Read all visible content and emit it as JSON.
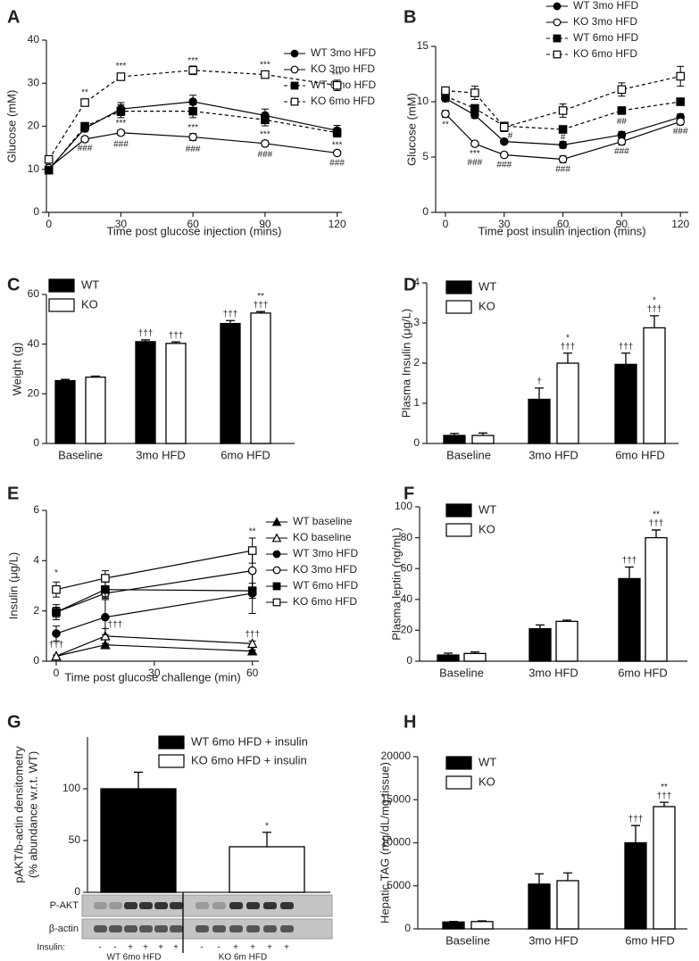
{
  "chart_data": [
    {
      "type": "line",
      "panel": "A",
      "xlabel": "Time post glucose injection (mins)",
      "ylabel": "Glucose (mM)",
      "x": [
        0,
        15,
        30,
        60,
        90,
        120
      ],
      "xlim": [
        -1,
        122
      ],
      "xticks": [
        0,
        30,
        60,
        90,
        120
      ],
      "ylim": [
        0,
        40
      ],
      "yticks": [
        0,
        10,
        20,
        30,
        40
      ],
      "series": [
        {
          "name": "WT 3mo HFD",
          "color": "#000000",
          "marker": "circle",
          "filled": true,
          "dashed": false,
          "values": [
            10,
            19.5,
            24,
            25.7,
            22.5,
            19
          ],
          "errors": [
            0.5,
            0.8,
            1.5,
            1.5,
            1.5,
            1.2
          ]
        },
        {
          "name": "KO 3mo HFD",
          "color": "#000000",
          "marker": "circle",
          "filled": false,
          "dashed": false,
          "values": [
            10.3,
            17,
            18.5,
            17.5,
            16,
            13.8
          ],
          "errors": [
            0.5,
            0.6,
            0.6,
            0.8,
            0.6,
            0.5
          ]
        },
        {
          "name": "WT 6mo HFD",
          "color": "#000000",
          "marker": "square",
          "filled": true,
          "dashed": true,
          "values": [
            9.8,
            20,
            23.5,
            23.5,
            21.5,
            18.5
          ],
          "errors": [
            0.6,
            0.8,
            1.5,
            1.5,
            1.4,
            1.0
          ]
        },
        {
          "name": "KO 6mo HFD",
          "color": "#000000",
          "marker": "square",
          "filled": false,
          "dashed": true,
          "values": [
            12.3,
            25.5,
            31.5,
            33,
            32,
            29.5
          ],
          "errors": [
            0.8,
            0.8,
            0.8,
            1,
            0.8,
            1.2
          ]
        }
      ],
      "annotations": [
        {
          "text": "**",
          "x": 15,
          "y": 27.8
        },
        {
          "text": "###",
          "x": 15,
          "y": 14.8
        },
        {
          "text": "***",
          "x": 30,
          "y": 33.9
        },
        {
          "text": "***",
          "x": 30,
          "y": 20.6
        },
        {
          "text": "###",
          "x": 30,
          "y": 15.8
        },
        {
          "text": "***",
          "x": 60,
          "y": 35.2
        },
        {
          "text": "***",
          "x": 60,
          "y": 19.6
        },
        {
          "text": "###",
          "x": 60,
          "y": 14.6
        },
        {
          "text": "***",
          "x": 90,
          "y": 34.2
        },
        {
          "text": "***",
          "x": 90,
          "y": 18.1
        },
        {
          "text": "###",
          "x": 90,
          "y": 13.4
        },
        {
          "text": "***",
          "x": 120,
          "y": 31.8
        },
        {
          "text": "***",
          "x": 120,
          "y": 15.6
        },
        {
          "text": "###",
          "x": 120,
          "y": 11.4
        }
      ]
    },
    {
      "type": "line",
      "panel": "B",
      "xlabel": "Time post insulin injection (mins)",
      "ylabel": "Glucose (mM)",
      "x": [
        0,
        15,
        30,
        60,
        90,
        120
      ],
      "xlim": [
        -5,
        124
      ],
      "xticks": [
        0,
        30,
        60,
        90,
        120
      ],
      "ylim": [
        0,
        15
      ],
      "yticks": [
        0,
        5,
        10,
        15
      ],
      "series": [
        {
          "name": "WT 3mo HFD",
          "color": "#000000",
          "marker": "circle",
          "filled": true,
          "dashed": false,
          "values": [
            10.3,
            8.8,
            6.4,
            6.1,
            7.0,
            8.6
          ],
          "errors": [
            0.3,
            0.3,
            0.2,
            0.3,
            0.3,
            0.3
          ]
        },
        {
          "name": "KO 3mo HFD",
          "color": "#000000",
          "marker": "circle",
          "filled": false,
          "dashed": false,
          "values": [
            8.9,
            6.2,
            5.2,
            4.8,
            6.4,
            8.2
          ],
          "errors": [
            0.3,
            0.2,
            0.2,
            0.3,
            0.3,
            0.3
          ]
        },
        {
          "name": "WT 6mo HFD",
          "color": "#000000",
          "marker": "square",
          "filled": true,
          "dashed": true,
          "values": [
            10.5,
            9.4,
            7.8,
            7.5,
            9.2,
            10.0
          ],
          "errors": [
            0.3,
            0.3,
            0.3,
            0.3,
            0.3,
            0.3
          ]
        },
        {
          "name": "KO 6mo HFD",
          "color": "#000000",
          "marker": "square",
          "filled": false,
          "dashed": true,
          "values": [
            11.0,
            10.8,
            7.7,
            9.2,
            11.1,
            12.3
          ],
          "errors": [
            0.3,
            0.6,
            0.4,
            0.6,
            0.6,
            0.9
          ]
        }
      ],
      "annotations": [
        {
          "text": "**",
          "x": 0,
          "y": 7.9
        },
        {
          "text": "***",
          "x": 15,
          "y": 5.3
        },
        {
          "text": "###",
          "x": 15,
          "y": 4.5
        },
        {
          "text": "#",
          "x": 33,
          "y": 6.9
        },
        {
          "text": "###",
          "x": 30,
          "y": 4.3
        },
        {
          "text": "#",
          "x": 60,
          "y": 6.8
        },
        {
          "text": "###",
          "x": 60,
          "y": 3.9
        },
        {
          "text": "##",
          "x": 90,
          "y": 8.2
        },
        {
          "text": "###",
          "x": 90,
          "y": 5.5
        },
        {
          "text": "###",
          "x": 120,
          "y": 7.3
        }
      ]
    },
    {
      "type": "bar",
      "panel": "C",
      "ylabel": "Weight (g)",
      "categories": [
        "Baseline",
        "3mo HFD",
        "6mo HFD"
      ],
      "ylim": [
        0,
        60
      ],
      "yticks": [
        0,
        20,
        40,
        60
      ],
      "series": [
        {
          "name": "WT",
          "color": "#000000",
          "values": [
            25.3,
            41,
            48.3
          ],
          "errors": [
            0.5,
            0.7,
            1.2
          ],
          "annotations": [
            null,
            [
              "†††"
            ],
            [
              "†††"
            ]
          ]
        },
        {
          "name": "KO",
          "color": "#ffffff",
          "values": [
            26.7,
            40.3,
            52.5
          ],
          "errors": [
            0.4,
            0.6,
            0.6
          ],
          "annotations": [
            null,
            [
              "†††"
            ],
            [
              "**",
              "†††"
            ]
          ]
        }
      ]
    },
    {
      "type": "bar",
      "panel": "D",
      "ylabel": "Plasma Insulin (μg/L)",
      "categories": [
        "Baseline",
        "3mo HFD",
        "6mo HFD"
      ],
      "ylim": [
        0,
        4
      ],
      "yticks": [
        0,
        1,
        2,
        3,
        4
      ],
      "series": [
        {
          "name": "WT",
          "color": "#000000",
          "values": [
            0.2,
            1.1,
            1.97
          ],
          "errors": [
            0.05,
            0.28,
            0.28
          ],
          "annotations": [
            null,
            [
              "†"
            ],
            [
              "†††"
            ]
          ]
        },
        {
          "name": "KO",
          "color": "#ffffff",
          "values": [
            0.2,
            2.0,
            2.88
          ],
          "errors": [
            0.06,
            0.25,
            0.3
          ],
          "annotations": [
            null,
            [
              "*",
              "†††"
            ],
            [
              "*",
              "†††"
            ]
          ]
        }
      ]
    },
    {
      "type": "line",
      "panel": "E",
      "xlabel": "Time post glucose challenge (min)",
      "ylabel": "Insulin (μg/L)",
      "x": [
        0,
        15,
        60
      ],
      "xlim": [
        -3,
        62
      ],
      "xticks": [
        0,
        30,
        60
      ],
      "ylim": [
        0,
        6
      ],
      "yticks": [
        0,
        2,
        4,
        6
      ],
      "series": [
        {
          "name": "WT baseline",
          "color": "#000000",
          "marker": "triangle",
          "filled": true,
          "dashed": false,
          "values": [
            0.2,
            0.65,
            0.4
          ],
          "errors": [
            0.05,
            0.05,
            0.05
          ]
        },
        {
          "name": "KO baseline",
          "color": "#000000",
          "marker": "triangle",
          "filled": false,
          "dashed": false,
          "values": [
            0.2,
            1.0,
            0.7
          ],
          "errors": [
            0.05,
            0.3,
            0.1
          ]
        },
        {
          "name": "WT 3mo HFD",
          "color": "#000000",
          "marker": "circle",
          "filled": true,
          "dashed": false,
          "values": [
            1.1,
            1.75,
            2.7
          ],
          "errors": [
            0.3,
            0.7,
            0.8
          ]
        },
        {
          "name": "KO 3mo HFD",
          "color": "#000000",
          "marker": "circle",
          "filled": false,
          "dashed": false,
          "values": [
            1.95,
            2.7,
            3.6
          ],
          "errors": [
            0.2,
            0.2,
            0.8
          ]
        },
        {
          "name": "WT 6mo HFD",
          "color": "#000000",
          "marker": "square",
          "filled": true,
          "dashed": false,
          "values": [
            1.95,
            2.85,
            2.8
          ],
          "errors": [
            0.3,
            0.3,
            0.3
          ]
        },
        {
          "name": "KO 6mo HFD",
          "color": "#000000",
          "marker": "square",
          "filled": false,
          "dashed": false,
          "values": [
            2.85,
            3.3,
            4.4
          ],
          "errors": [
            0.3,
            0.3,
            0.5
          ]
        }
      ],
      "annotations": [
        {
          "text": "*",
          "x": 0,
          "y": 3.5
        },
        {
          "text": "†††",
          "x": 0,
          "y": 0.65
        },
        {
          "text": "†††",
          "x": 18,
          "y": 1.45
        },
        {
          "text": "**",
          "x": 60,
          "y": 5.15
        },
        {
          "text": "†††",
          "x": 60,
          "y": 1.05
        }
      ]
    },
    {
      "type": "bar",
      "panel": "F",
      "ylabel": "Plasma leptin (ng/mL)",
      "categories": [
        "Baseline",
        "3mo HFD",
        "6mo HFD"
      ],
      "ylim": [
        0,
        100
      ],
      "yticks": [
        0,
        20,
        40,
        60,
        80,
        100
      ],
      "series": [
        {
          "name": "WT",
          "color": "#000000",
          "values": [
            4,
            21,
            53.5
          ],
          "errors": [
            1.2,
            2.5,
            7.5
          ],
          "annotations": [
            null,
            null,
            [
              "†††"
            ]
          ]
        },
        {
          "name": "KO",
          "color": "#ffffff",
          "values": [
            5,
            25.8,
            80
          ],
          "errors": [
            1,
            0.8,
            5
          ],
          "annotations": [
            null,
            null,
            [
              "**",
              "†††"
            ]
          ]
        }
      ]
    },
    {
      "type": "bar",
      "panel": "G",
      "ylabel": [
        "pAKT/b-actin densitometry",
        "(% abundance w.r.t. WT)"
      ],
      "categories": [
        null
      ],
      "ylim": [
        0,
        150
      ],
      "yticks": [
        0,
        50,
        100
      ],
      "series": [
        {
          "name": "WT 6mo HFD + insulin",
          "color": "#000000",
          "values": [
            100
          ],
          "errors": [
            16
          ],
          "annotations": [
            null
          ]
        },
        {
          "name": "KO 6mo HFD + insulin",
          "color": "#ffffff",
          "values": [
            44
          ],
          "errors": [
            14
          ],
          "annotations": [
            [
              "*"
            ]
          ]
        }
      ],
      "blot": {
        "rows": [
          "P-AKT",
          "β-actin"
        ],
        "insulin_label": "Insulin:",
        "lanes": [
          "-",
          "-",
          "+",
          "+",
          "+",
          "+",
          "-",
          "-",
          "+",
          "+",
          "+",
          "+"
        ],
        "groups": [
          "WT 6mo HFD",
          "KO 6m HFD"
        ]
      }
    },
    {
      "type": "bar",
      "panel": "H",
      "ylabel": "Hepatic TAG (mg/dL/mg tissue)",
      "categories": [
        "Baseline",
        "3mo HFD",
        "6mo HFD"
      ],
      "ylim": [
        0,
        20000
      ],
      "yticks": [
        0,
        5000,
        10000,
        15000,
        20000
      ],
      "series": [
        {
          "name": "WT",
          "color": "#000000",
          "values": [
            800,
            5200,
            10000
          ],
          "errors": [
            60,
            1200,
            2000
          ],
          "annotations": [
            null,
            null,
            [
              "†††"
            ]
          ]
        },
        {
          "name": "KO",
          "color": "#ffffff",
          "values": [
            850,
            5600,
            14200
          ],
          "errors": [
            80,
            900,
            500
          ],
          "annotations": [
            null,
            null,
            [
              "**",
              "†††"
            ]
          ]
        }
      ]
    }
  ]
}
